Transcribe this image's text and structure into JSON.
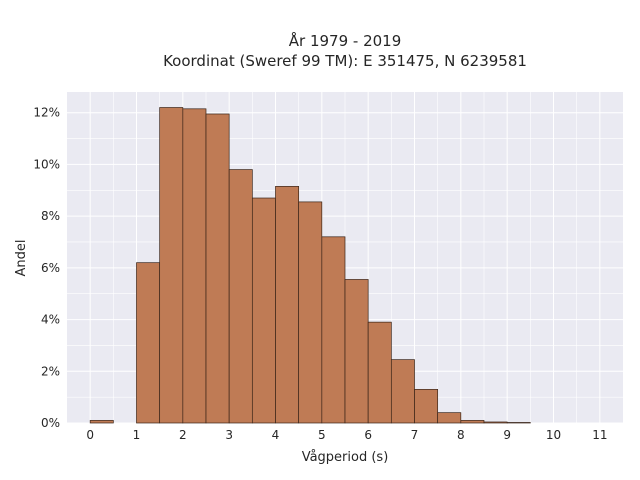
{
  "chart_data": {
    "type": "bar",
    "title": "År 1979 - 2019",
    "subtitle": "Koordinat (Sweref 99 TM): E 351475, N 6239581",
    "xlabel": "Vågperiod (s)",
    "ylabel": "Andel",
    "xlim": [
      -0.5,
      11.5
    ],
    "ylim": [
      0,
      12.8
    ],
    "x_ticks": [
      0,
      1,
      2,
      3,
      4,
      5,
      6,
      7,
      8,
      9,
      10,
      11
    ],
    "y_ticks": [
      0,
      2,
      4,
      6,
      8,
      10,
      12
    ],
    "y_tick_labels": [
      "0%",
      "2%",
      "4%",
      "6%",
      "8%",
      "10%",
      "12%"
    ],
    "bin_width": 0.5,
    "bins": [
      {
        "start": 0.0,
        "value": 0.1
      },
      {
        "start": 0.5,
        "value": 0.0
      },
      {
        "start": 1.0,
        "value": 6.2
      },
      {
        "start": 1.5,
        "value": 12.2
      },
      {
        "start": 2.0,
        "value": 12.15
      },
      {
        "start": 2.5,
        "value": 11.95
      },
      {
        "start": 3.0,
        "value": 9.8
      },
      {
        "start": 3.5,
        "value": 8.7
      },
      {
        "start": 4.0,
        "value": 9.15
      },
      {
        "start": 4.5,
        "value": 8.55
      },
      {
        "start": 5.0,
        "value": 7.2
      },
      {
        "start": 5.5,
        "value": 5.55
      },
      {
        "start": 6.0,
        "value": 3.9
      },
      {
        "start": 6.5,
        "value": 2.45
      },
      {
        "start": 7.0,
        "value": 1.3
      },
      {
        "start": 7.5,
        "value": 0.4
      },
      {
        "start": 8.0,
        "value": 0.1
      },
      {
        "start": 8.5,
        "value": 0.04
      },
      {
        "start": 9.0,
        "value": 0.02
      },
      {
        "start": 9.5,
        "value": 0.0
      }
    ],
    "grid": true,
    "bar_color": "#bf7b55",
    "bar_edge_color": "#3a2418",
    "plot_bg_color": "#eaeaf2",
    "grid_color": "#ffffff"
  }
}
